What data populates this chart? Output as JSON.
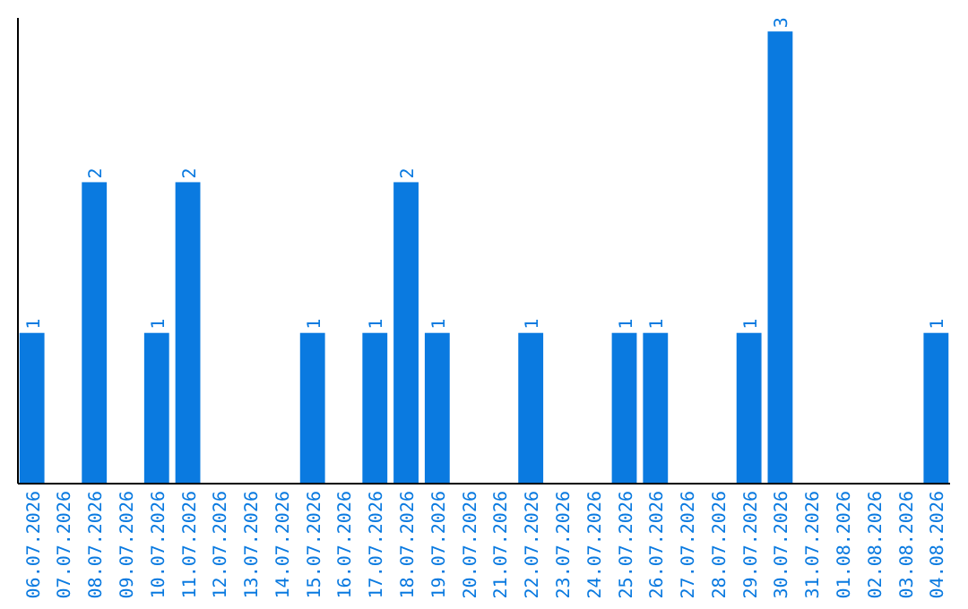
{
  "chart_data": {
    "type": "bar",
    "categories": [
      "06.07.2026",
      "07.07.2026",
      "08.07.2026",
      "09.07.2026",
      "10.07.2026",
      "11.07.2026",
      "12.07.2026",
      "13.07.2026",
      "14.07.2026",
      "15.07.2026",
      "16.07.2026",
      "17.07.2026",
      "18.07.2026",
      "19.07.2026",
      "20.07.2026",
      "21.07.2026",
      "22.07.2026",
      "23.07.2026",
      "24.07.2026",
      "25.07.2026",
      "26.07.2026",
      "27.07.2026",
      "28.07.2026",
      "29.07.2026",
      "30.07.2026",
      "31.07.2026",
      "01.08.2026",
      "02.08.2026",
      "03.08.2026",
      "04.08.2026"
    ],
    "values": [
      1,
      0,
      2,
      0,
      1,
      2,
      0,
      0,
      0,
      1,
      0,
      1,
      2,
      1,
      0,
      0,
      1,
      0,
      0,
      1,
      1,
      0,
      0,
      1,
      3,
      0,
      0,
      0,
      0,
      1
    ],
    "value_labels": [
      "1",
      null,
      "2",
      null,
      "1",
      "2",
      null,
      null,
      null,
      "1",
      null,
      "1",
      "2",
      "1",
      null,
      null,
      "1",
      null,
      null,
      "1",
      "1",
      null,
      null,
      "1",
      "3",
      null,
      null,
      null,
      null,
      "1"
    ],
    "color": "#0a7ae0"
  }
}
